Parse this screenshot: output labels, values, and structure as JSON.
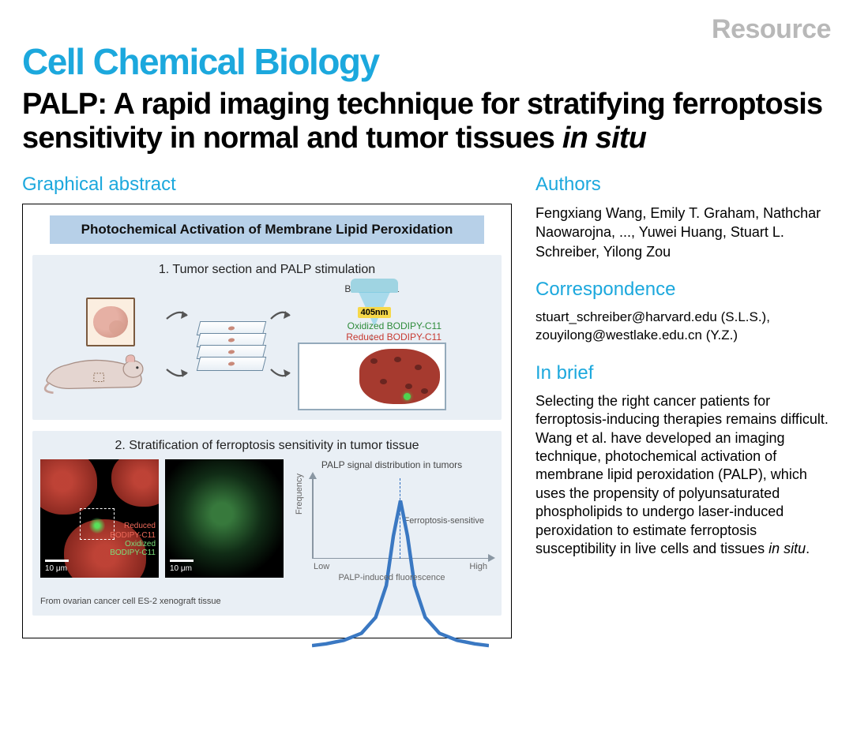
{
  "header": {
    "resource_tag": "Resource",
    "journal": "Cell Chemical Biology",
    "title_main": "PALP: A rapid imaging technique for stratifying ferroptosis sensitivity in normal and tumor tissues ",
    "title_italic": "in situ"
  },
  "left": {
    "section": "Graphical abstract",
    "banner": "Photochemical Activation of Membrane Lipid Peroxidation",
    "panel1": {
      "title": "1. Tumor section and PALP stimulation",
      "bodipy_label": "BODIPY-C11",
      "wavelength": "405nm",
      "oxidized": "Oxidized BODIPY-C11",
      "reduced": "Reduced BODIPY-C11"
    },
    "panel2": {
      "title": "2. Stratification of ferroptosis sensitivity in tumor tissue",
      "scale": "10 μm",
      "caption": "From ovarian cancer cell ES-2 xenograft tissue",
      "legend_reduced_a": "Reduced",
      "legend_reduced_b": "BODIPY-C11",
      "legend_oxidized_a": "Oxidized",
      "legend_oxidized_b": "BODIPY-C11",
      "chart_title": "PALP signal distribution in tumors",
      "ylab": "Frequency",
      "xlab": "PALP-induced fluorescence",
      "x_low": "Low",
      "x_high": "High",
      "sensitive": "Ferroptosis-sensitive",
      "distribution_curve": {
        "type": "line",
        "points": [
          [
            0.0,
            0.92
          ],
          [
            0.08,
            0.91
          ],
          [
            0.18,
            0.89
          ],
          [
            0.28,
            0.85
          ],
          [
            0.36,
            0.76
          ],
          [
            0.42,
            0.58
          ],
          [
            0.46,
            0.3
          ],
          [
            0.5,
            0.1
          ],
          [
            0.54,
            0.3
          ],
          [
            0.58,
            0.58
          ],
          [
            0.64,
            0.76
          ],
          [
            0.72,
            0.85
          ],
          [
            0.82,
            0.89
          ],
          [
            0.92,
            0.91
          ],
          [
            1.0,
            0.92
          ]
        ],
        "stroke": "#3a78c2",
        "stroke_width": 2
      }
    }
  },
  "right": {
    "authors_heading": "Authors",
    "authors": "Fengxiang Wang, Emily T. Graham, Nathchar Naowarojna, ..., Yuwei Huang, Stuart L. Schreiber, Yilong Zou",
    "corr_heading": "Correspondence",
    "corr_line1": "stuart_schreiber@harvard.edu (S.L.S.),",
    "corr_line2": "zouyilong@westlake.edu.cn (Y.Z.)",
    "brief_heading": "In brief",
    "brief_body_a": "Selecting the right cancer patients for ferroptosis-inducing therapies remains difficult. Wang et al. have developed an imaging technique, photochemical activation of membrane lipid peroxidation (PALP), which uses the propensity of polyunsaturated phospholipids to undergo laser-induced peroxidation to estimate ferroptosis susceptibility in live cells and tissues ",
    "brief_body_italic": "in situ",
    "brief_body_end": "."
  },
  "colors": {
    "accent": "#1ca8dd",
    "panel_bg": "#e9eff5",
    "banner_bg": "#b7d0e8",
    "tissue": "#a63a2f",
    "oxidized": "#2e8b3a",
    "reduced": "#c73a32",
    "curve": "#3a78c2"
  }
}
